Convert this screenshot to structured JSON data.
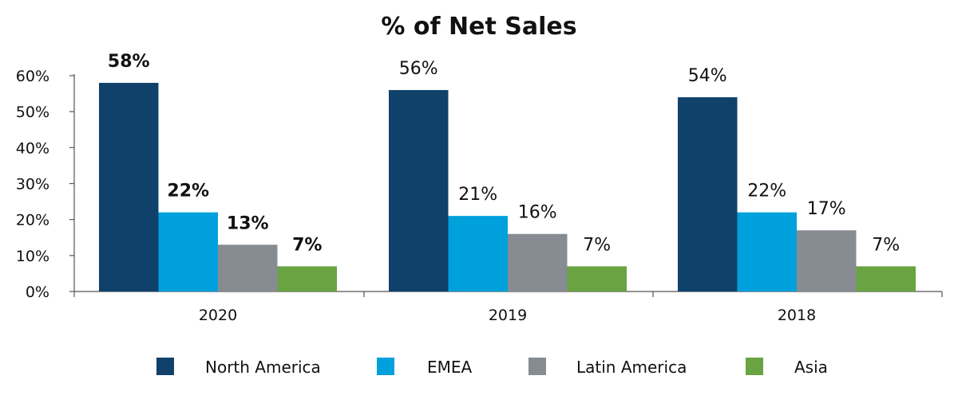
{
  "chart_data": {
    "type": "bar",
    "title": "% of Net Sales",
    "categories": [
      "2020",
      "2019",
      "2018"
    ],
    "series": [
      {
        "name": "North America",
        "color": "#0f416a",
        "values": [
          58,
          56,
          54
        ],
        "labels": [
          "58%",
          "56%",
          "54%"
        ]
      },
      {
        "name": "EMEA",
        "color": "#00a0dc",
        "values": [
          22,
          21,
          22
        ],
        "labels": [
          "22%",
          "21%",
          "22%"
        ]
      },
      {
        "name": "Latin America",
        "color": "#868c92",
        "values": [
          13,
          16,
          17
        ],
        "labels": [
          "13%",
          "16%",
          "17%"
        ]
      },
      {
        "name": "Asia",
        "color": "#6aa342",
        "values": [
          7,
          7,
          7
        ],
        "labels": [
          "7%",
          "7%",
          "7%"
        ]
      }
    ],
    "bold_category": "2020",
    "yticks": [
      "0%",
      "10%",
      "20%",
      "30%",
      "40%",
      "50%",
      "60%"
    ],
    "ylim": [
      0,
      60
    ],
    "xlabel": "",
    "ylabel": "",
    "legend": "bottom"
  }
}
